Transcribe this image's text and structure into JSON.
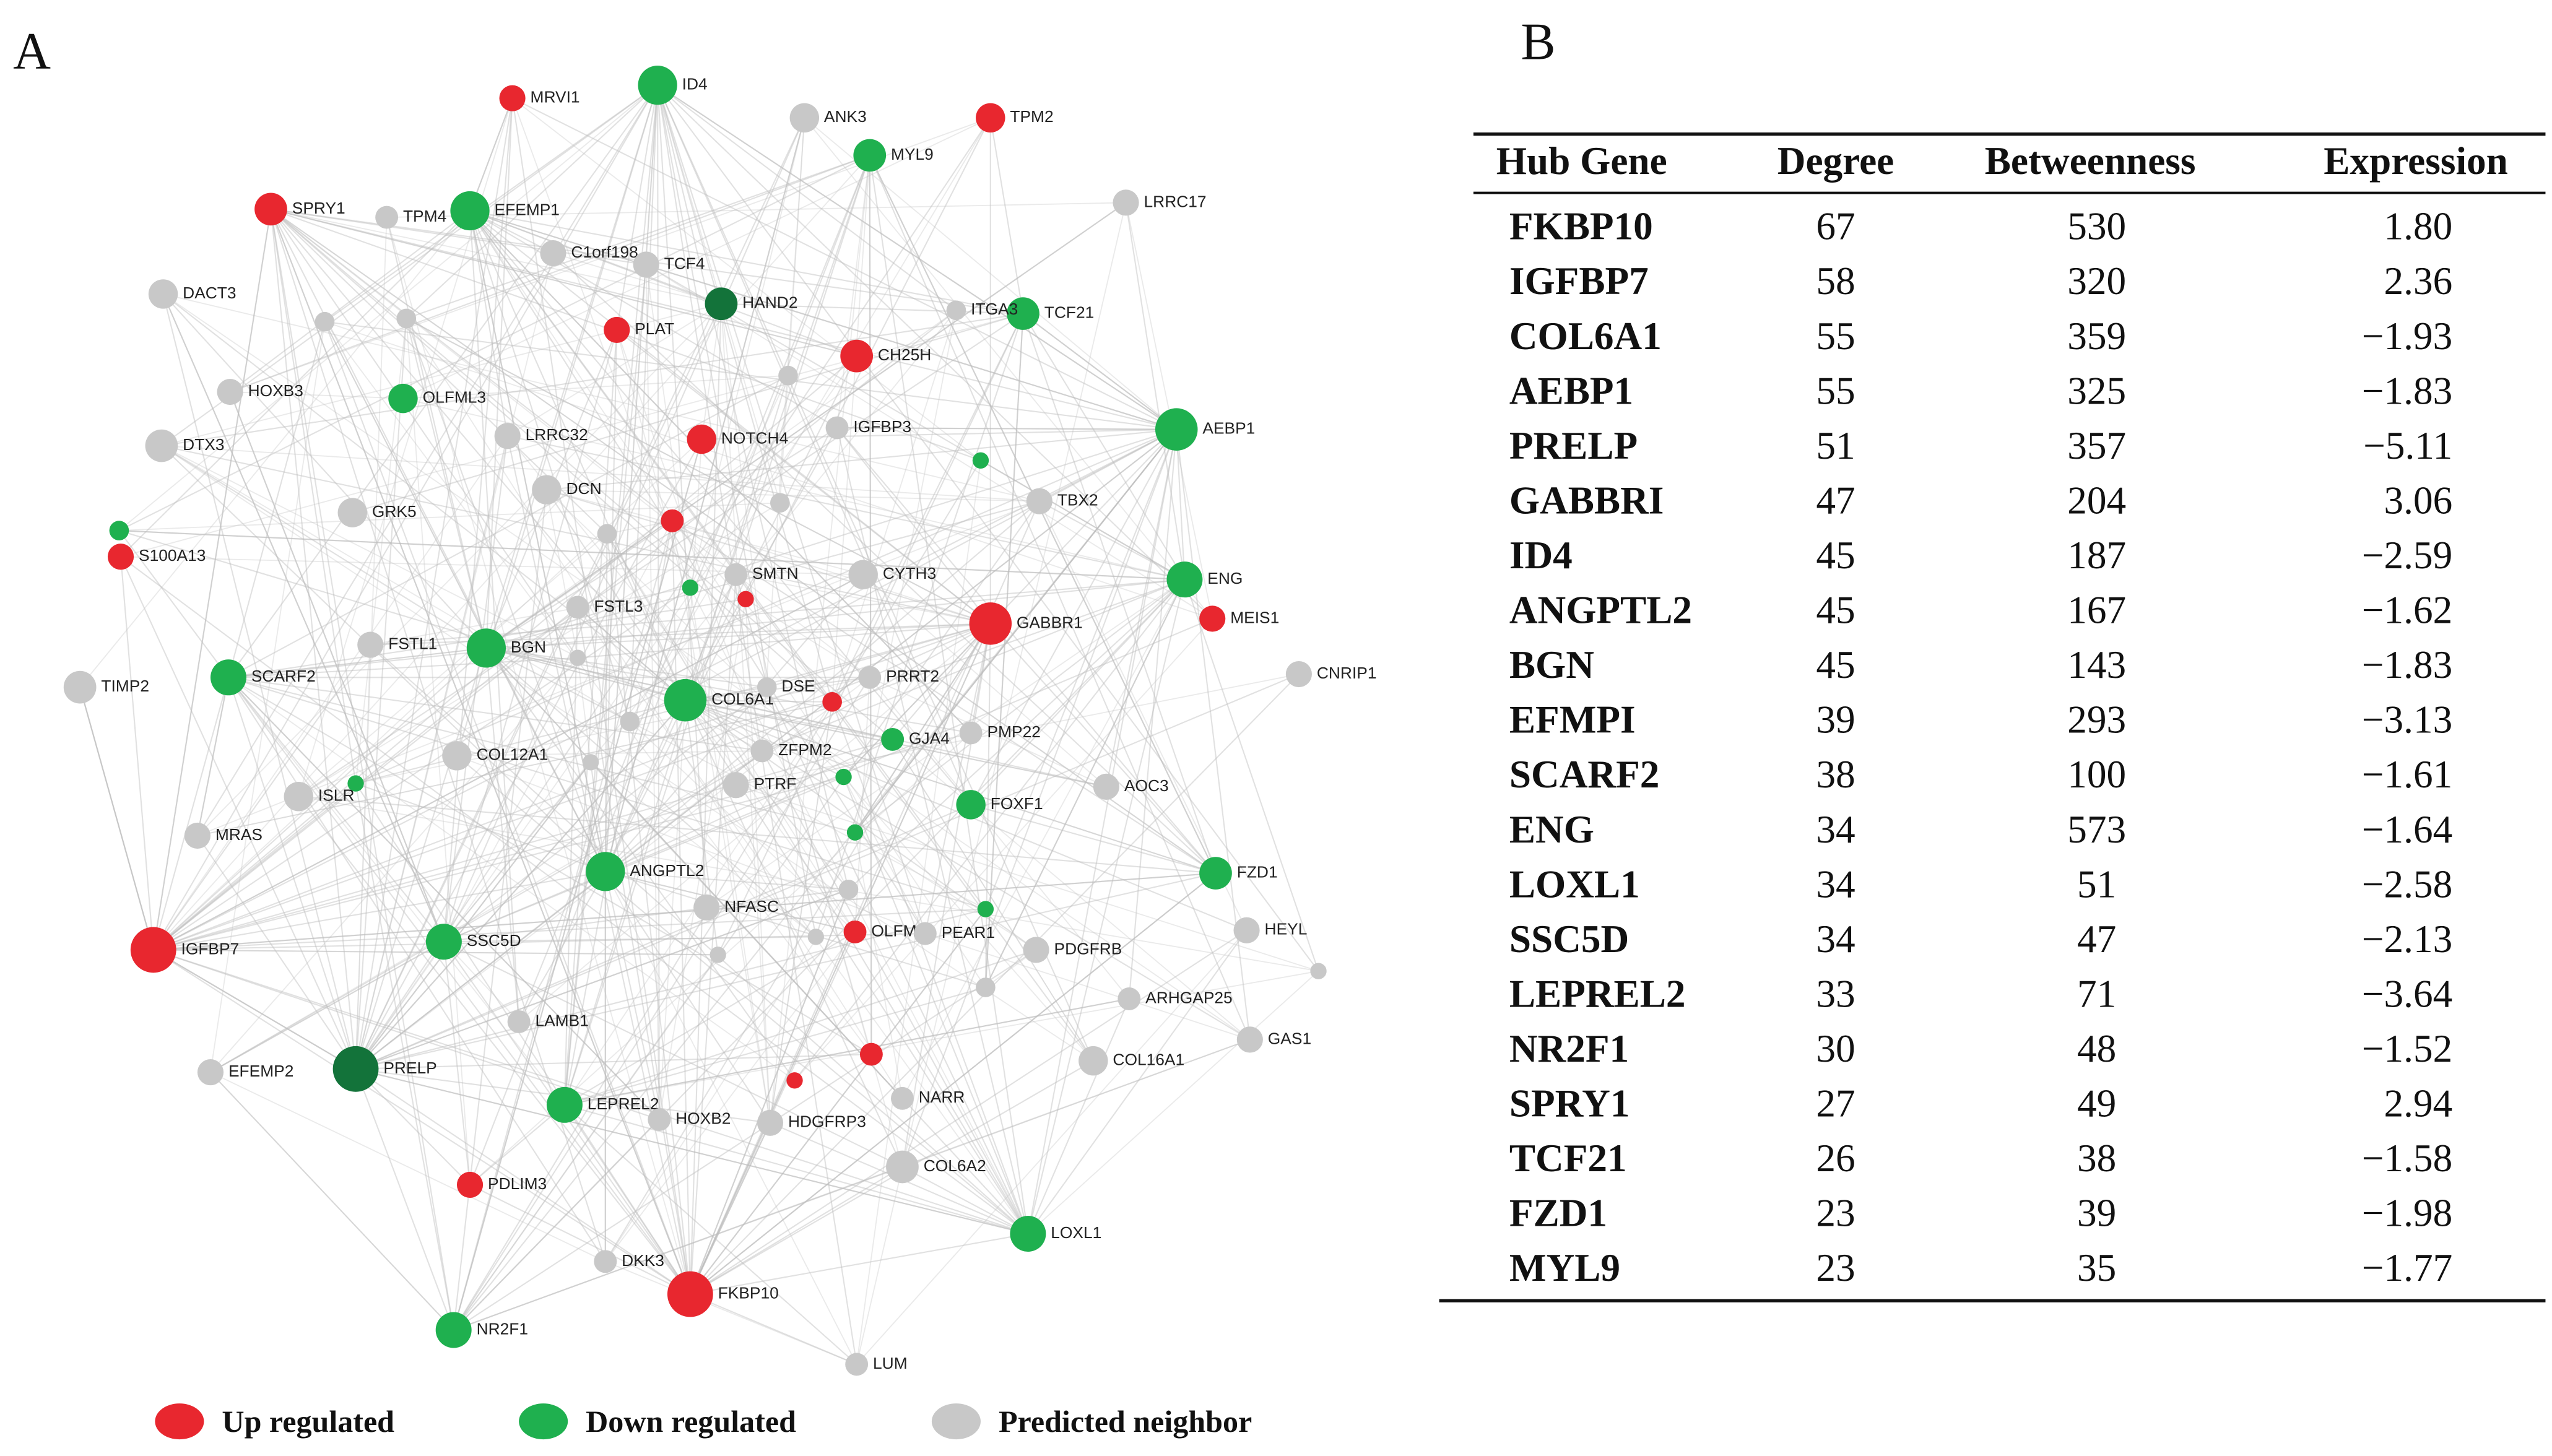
{
  "panel_a": {
    "label": "A",
    "legend": [
      {
        "name": "Up regulated",
        "group": "up",
        "color": "#e8272f"
      },
      {
        "name": "Down regulated",
        "group": "down",
        "color": "#1fb04f"
      },
      {
        "name": "Predicted neighbor",
        "group": "neighbor",
        "color": "#c8c8c8"
      }
    ],
    "nodes": [
      {
        "label": "MRVI1",
        "group": "up"
      },
      {
        "label": "ID4",
        "group": "down"
      },
      {
        "label": "ANK3",
        "group": "neighbor"
      },
      {
        "label": "TPM2",
        "group": "up"
      },
      {
        "label": "MYL9",
        "group": "down"
      },
      {
        "label": "SPRY1",
        "group": "up"
      },
      {
        "label": "TPM4",
        "group": "neighbor"
      },
      {
        "label": "EFEMP1",
        "group": "down"
      },
      {
        "label": "LRRC17",
        "group": "neighbor"
      },
      {
        "label": "C1orf198",
        "group": "neighbor"
      },
      {
        "label": "TCF4",
        "group": "neighbor"
      },
      {
        "label": "DACT3",
        "group": "neighbor"
      },
      {
        "label": "HAND2",
        "group": "down"
      },
      {
        "label": "PLAT",
        "group": "up"
      },
      {
        "label": "TCF21",
        "group": "down"
      },
      {
        "label": "CH25H",
        "group": "up"
      },
      {
        "label": "ITGA3",
        "group": "neighbor"
      },
      {
        "label": "HOXB3",
        "group": "neighbor"
      },
      {
        "label": "OLFML3",
        "group": "down"
      },
      {
        "label": "AEBP1",
        "group": "down"
      },
      {
        "label": "DTX3",
        "group": "neighbor"
      },
      {
        "label": "LRRC32",
        "group": "neighbor"
      },
      {
        "label": "NOTCH4",
        "group": "up"
      },
      {
        "label": "IGFBP3",
        "group": "neighbor"
      },
      {
        "label": "TBX2",
        "group": "neighbor"
      },
      {
        "label": "DCN",
        "group": "neighbor"
      },
      {
        "label": "GRK5",
        "group": "neighbor"
      },
      {
        "label": "S100A13",
        "group": "up"
      },
      {
        "label": "ENG",
        "group": "down"
      },
      {
        "label": "SMTN",
        "group": "neighbor"
      },
      {
        "label": "CYTH3",
        "group": "neighbor"
      },
      {
        "label": "MEIS1",
        "group": "up"
      },
      {
        "label": "GABBR1",
        "group": "up"
      },
      {
        "label": "FSTL3",
        "group": "neighbor"
      },
      {
        "label": "FSTL1",
        "group": "neighbor"
      },
      {
        "label": "BGN",
        "group": "down"
      },
      {
        "label": "SCARF2",
        "group": "down"
      },
      {
        "label": "TIMP2",
        "group": "neighbor"
      },
      {
        "label": "CNRIP1",
        "group": "neighbor"
      },
      {
        "label": "COL6A1",
        "group": "down"
      },
      {
        "label": "DSE",
        "group": "neighbor"
      },
      {
        "label": "PRRT2",
        "group": "neighbor"
      },
      {
        "label": "PMP22",
        "group": "neighbor"
      },
      {
        "label": "GJA4",
        "group": "down"
      },
      {
        "label": "ZFPM2",
        "group": "neighbor"
      },
      {
        "label": "COL12A1",
        "group": "neighbor"
      },
      {
        "label": "AOC3",
        "group": "neighbor"
      },
      {
        "label": "ISLR",
        "group": "neighbor"
      },
      {
        "label": "PTRF",
        "group": "neighbor"
      },
      {
        "label": "FOXF1",
        "group": "down"
      },
      {
        "label": "MRAS",
        "group": "neighbor"
      },
      {
        "label": "ANGPTL2",
        "group": "down"
      },
      {
        "label": "FZD1",
        "group": "down"
      },
      {
        "label": "NFASC",
        "group": "neighbor"
      },
      {
        "label": "HEYL",
        "group": "neighbor"
      },
      {
        "label": "OLFML1",
        "group": "up"
      },
      {
        "label": "PEAR1",
        "group": "neighbor"
      },
      {
        "label": "IGFBP7",
        "group": "up"
      },
      {
        "label": "SSC5D",
        "group": "down"
      },
      {
        "label": "PDGFRB",
        "group": "neighbor"
      },
      {
        "label": "ARHGAP25",
        "group": "neighbor"
      },
      {
        "label": "LAMB1",
        "group": "neighbor"
      },
      {
        "label": "GAS1",
        "group": "neighbor"
      },
      {
        "label": "EFEMP2",
        "group": "neighbor"
      },
      {
        "label": "PRELP",
        "group": "down"
      },
      {
        "label": "COL16A1",
        "group": "neighbor"
      },
      {
        "label": "LEPREL2",
        "group": "down"
      },
      {
        "label": "HOXB2",
        "group": "neighbor"
      },
      {
        "label": "NARR",
        "group": "neighbor"
      },
      {
        "label": "HDGFRP3",
        "group": "neighbor"
      },
      {
        "label": "COL6A2",
        "group": "neighbor"
      },
      {
        "label": "PDLIM3",
        "group": "up"
      },
      {
        "label": "LOXL1",
        "group": "down"
      },
      {
        "label": "DKK3",
        "group": "neighbor"
      },
      {
        "label": "FKBP10",
        "group": "up"
      },
      {
        "label": "NR2F1",
        "group": "down"
      },
      {
        "label": "LUM",
        "group": "neighbor"
      }
    ]
  },
  "panel_b": {
    "label": "B",
    "table": {
      "header": [
        "Hub Gene",
        "Degree",
        "Betweenness",
        "Expression"
      ],
      "rows": [
        [
          "FKBP10",
          "67",
          "530",
          "1.80"
        ],
        [
          "IGFBP7",
          "58",
          "320",
          "2.36"
        ],
        [
          "COL6A1",
          "55",
          "359",
          "−1.93"
        ],
        [
          "AEBP1",
          "55",
          "325",
          "−1.83"
        ],
        [
          "PRELP",
          "51",
          "357",
          "−5.11"
        ],
        [
          "GABBRI",
          "47",
          "204",
          "3.06"
        ],
        [
          "ID4",
          "45",
          "187",
          "−2.59"
        ],
        [
          "ANGPTL2",
          "45",
          "167",
          "−1.62"
        ],
        [
          "BGN",
          "45",
          "143",
          "−1.83"
        ],
        [
          "EFMPI",
          "39",
          "293",
          "−3.13"
        ],
        [
          "SCARF2",
          "38",
          "100",
          "−1.61"
        ],
        [
          "ENG",
          "34",
          "573",
          "−1.64"
        ],
        [
          "LOXL1",
          "34",
          "51",
          "−2.58"
        ],
        [
          "SSC5D",
          "34",
          "47",
          "−2.13"
        ],
        [
          "LEPREL2",
          "33",
          "71",
          "−3.64"
        ],
        [
          "NR2F1",
          "30",
          "48",
          "−1.52"
        ],
        [
          "SPRY1",
          "27",
          "49",
          "2.94"
        ],
        [
          "TCF21",
          "26",
          "38",
          "−1.58"
        ],
        [
          "FZD1",
          "23",
          "39",
          "−1.98"
        ],
        [
          "MYL9",
          "23",
          "35",
          "−1.77"
        ]
      ]
    }
  }
}
